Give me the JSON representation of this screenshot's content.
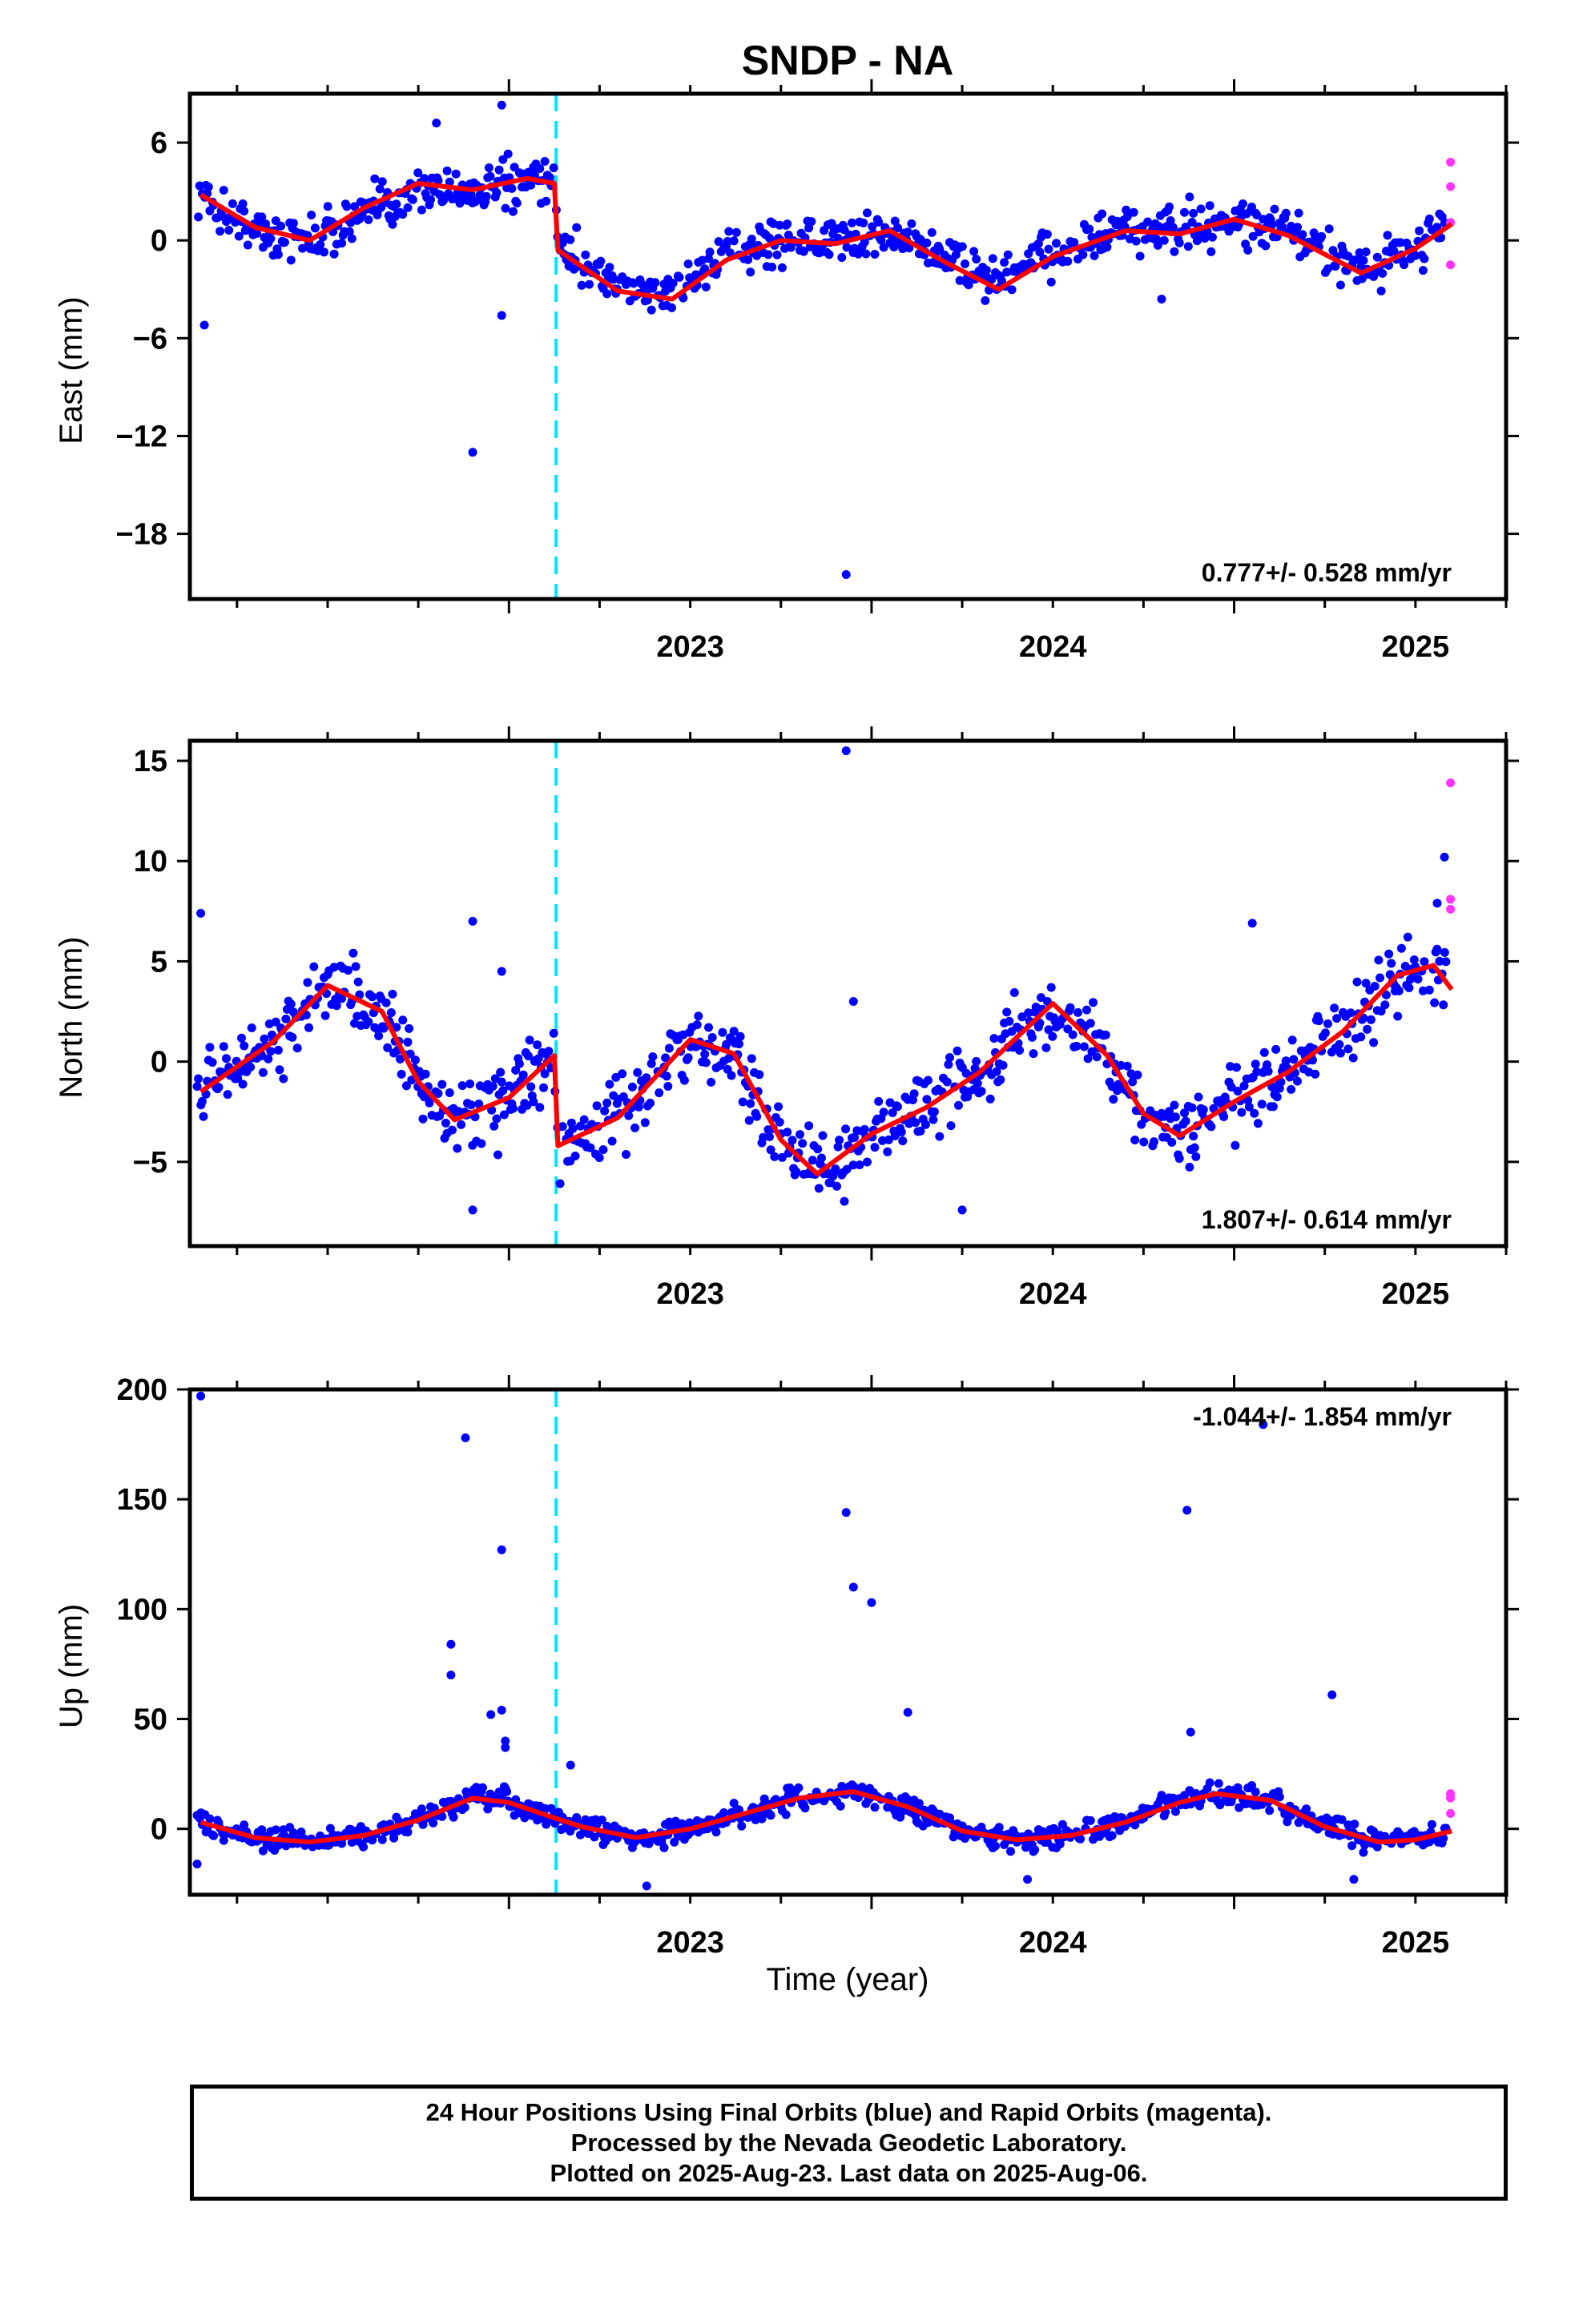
{
  "chart_data": {
    "title": "SNDP - NA",
    "x_axis": {
      "label": "Time (year)",
      "ticks": [
        2023,
        2024,
        2025
      ],
      "range": [
        2022.12,
        2025.75
      ]
    },
    "legend_colors": {
      "final": "#0000ff",
      "rapid": "#ff33ff",
      "model": "#ff0000",
      "offset": "#00e5ff"
    },
    "offset_epoch": 2023.13,
    "panels": [
      {
        "type": "scatter",
        "ylabel": "East (mm)",
        "yticks": [
          6,
          0,
          -6,
          -12,
          -18
        ],
        "ylim": [
          -22,
          9
        ],
        "rate_text": "0.777+/- 0.528 mm/yr",
        "rate_position": "bottom-right",
        "model": [
          [
            2022.15,
            2.8
          ],
          [
            2022.3,
            0.8
          ],
          [
            2022.45,
            0.0
          ],
          [
            2022.6,
            2.0
          ],
          [
            2022.75,
            3.5
          ],
          [
            2022.9,
            3.1
          ],
          [
            2023.05,
            3.8
          ],
          [
            2023.125,
            3.5
          ],
          [
            2023.135,
            -0.6
          ],
          [
            2023.3,
            -3.1
          ],
          [
            2023.45,
            -3.6
          ],
          [
            2023.6,
            -1.2
          ],
          [
            2023.75,
            0.0
          ],
          [
            2023.9,
            -0.2
          ],
          [
            2024.05,
            0.6
          ],
          [
            2024.2,
            -1.3
          ],
          [
            2024.35,
            -3.0
          ],
          [
            2024.5,
            -1.0
          ],
          [
            2024.7,
            0.6
          ],
          [
            2024.85,
            0.4
          ],
          [
            2025.0,
            1.3
          ],
          [
            2025.15,
            0.3
          ],
          [
            2025.35,
            -2.0
          ],
          [
            2025.5,
            -0.5
          ],
          [
            2025.6,
            1.0
          ]
        ],
        "trend": [
          [
            2022.15,
            2.6
          ],
          [
            2022.3,
            0.6
          ],
          [
            2022.45,
            0.0
          ],
          [
            2022.6,
            1.6
          ],
          [
            2022.75,
            3.2
          ],
          [
            2022.9,
            3.0
          ],
          [
            2023.05,
            3.6
          ],
          [
            2023.125,
            3.4
          ],
          [
            2023.14,
            -0.4
          ],
          [
            2023.3,
            -2.8
          ],
          [
            2023.45,
            -3.2
          ],
          [
            2023.6,
            -1.0
          ],
          [
            2023.75,
            0.2
          ],
          [
            2023.9,
            0.0
          ],
          [
            2024.05,
            0.4
          ],
          [
            2024.2,
            -1.0
          ],
          [
            2024.35,
            -2.6
          ],
          [
            2024.5,
            -0.8
          ],
          [
            2024.7,
            0.6
          ],
          [
            2024.85,
            0.6
          ],
          [
            2025.0,
            1.2
          ],
          [
            2025.15,
            0.4
          ],
          [
            2025.35,
            -1.6
          ],
          [
            2025.5,
            -0.4
          ],
          [
            2025.6,
            0.9
          ]
        ],
        "amp": 1.3,
        "outliers": [
          [
            2022.16,
            -5.2
          ],
          [
            2022.9,
            -13
          ],
          [
            2022.98,
            -4.6
          ],
          [
            2023.93,
            -20.5
          ],
          [
            2022.8,
            7.2
          ],
          [
            2022.98,
            8.3
          ],
          [
            2024.8,
            -3.6
          ]
        ],
        "rapid": [
          [
            2025.59,
            4.8
          ],
          [
            2025.59,
            3.3
          ],
          [
            2025.59,
            1.1
          ],
          [
            2025.59,
            -1.5
          ]
        ]
      },
      {
        "type": "scatter",
        "ylabel": "North (mm)",
        "yticks": [
          15,
          10,
          5,
          0,
          -5
        ],
        "ylim": [
          -9.2,
          16
        ],
        "rate_text": "1.807+/- 0.614 mm/yr",
        "rate_position": "bottom-right",
        "model": [
          [
            2022.15,
            -1.5
          ],
          [
            2022.35,
            1.0
          ],
          [
            2022.5,
            3.8
          ],
          [
            2022.65,
            2.5
          ],
          [
            2022.75,
            -1.0
          ],
          [
            2022.85,
            -2.9
          ],
          [
            2023.0,
            -1.8
          ],
          [
            2023.125,
            0.3
          ],
          [
            2023.135,
            -4.2
          ],
          [
            2023.3,
            -2.8
          ],
          [
            2023.5,
            1.1
          ],
          [
            2023.62,
            0.4
          ],
          [
            2023.75,
            -3.9
          ],
          [
            2023.85,
            -5.6
          ],
          [
            2024.0,
            -3.6
          ],
          [
            2024.15,
            -2.3
          ],
          [
            2024.3,
            -0.5
          ],
          [
            2024.5,
            2.9
          ],
          [
            2024.65,
            0.3
          ],
          [
            2024.75,
            -2.6
          ],
          [
            2024.85,
            -3.7
          ],
          [
            2025.0,
            -2.0
          ],
          [
            2025.15,
            -0.5
          ],
          [
            2025.3,
            1.5
          ],
          [
            2025.45,
            4.3
          ],
          [
            2025.55,
            4.8
          ],
          [
            2025.6,
            3.6
          ]
        ],
        "amp": 1.6,
        "outliers": [
          [
            2022.15,
            7.4
          ],
          [
            2022.9,
            7.0
          ],
          [
            2022.98,
            4.5
          ],
          [
            2023.93,
            15.5
          ],
          [
            2023.95,
            3.0
          ],
          [
            2024.25,
            -7.4
          ],
          [
            2025.05,
            6.9
          ],
          [
            2022.9,
            -7.4
          ],
          [
            2025.58,
            10.2
          ],
          [
            2025.56,
            7.9
          ]
        ],
        "rapid": [
          [
            2025.59,
            13.9
          ],
          [
            2025.59,
            8.1
          ],
          [
            2025.59,
            7.6
          ]
        ]
      },
      {
        "type": "scatter",
        "ylabel": "Up (mm)",
        "yticks": [
          200,
          150,
          100,
          50,
          0
        ],
        "ylim": [
          -30,
          200
        ],
        "rate_text": "-1.044+/- 1.854 mm/yr",
        "rate_position": "top-right",
        "model": [
          [
            2022.15,
            3
          ],
          [
            2022.3,
            -4
          ],
          [
            2022.45,
            -6
          ],
          [
            2022.6,
            -3
          ],
          [
            2022.75,
            4
          ],
          [
            2022.9,
            14
          ],
          [
            2023.0,
            12
          ],
          [
            2023.125,
            5
          ],
          [
            2023.2,
            1
          ],
          [
            2023.35,
            -4
          ],
          [
            2023.5,
            0
          ],
          [
            2023.65,
            7
          ],
          [
            2023.8,
            14
          ],
          [
            2023.95,
            17
          ],
          [
            2024.1,
            10
          ],
          [
            2024.25,
            -1
          ],
          [
            2024.4,
            -5
          ],
          [
            2024.55,
            -3
          ],
          [
            2024.7,
            3
          ],
          [
            2024.85,
            12
          ],
          [
            2024.95,
            16
          ],
          [
            2025.1,
            13
          ],
          [
            2025.25,
            1
          ],
          [
            2025.4,
            -6
          ],
          [
            2025.5,
            -5
          ],
          [
            2025.6,
            -1
          ]
        ],
        "amp": 4.5,
        "outliers": [
          [
            2022.15,
            197
          ],
          [
            2022.88,
            178
          ],
          [
            2022.98,
            127
          ],
          [
            2022.84,
            84
          ],
          [
            2022.84,
            70
          ],
          [
            2022.95,
            52
          ],
          [
            2022.98,
            54
          ],
          [
            2022.99,
            40
          ],
          [
            2022.99,
            37
          ],
          [
            2023.93,
            144
          ],
          [
            2023.95,
            110
          ],
          [
            2024.0,
            103
          ],
          [
            2024.1,
            53
          ],
          [
            2024.87,
            145
          ],
          [
            2024.88,
            44
          ],
          [
            2025.08,
            184
          ],
          [
            2025.27,
            61
          ],
          [
            2023.17,
            29
          ],
          [
            2023.38,
            -26
          ],
          [
            2025.33,
            -23
          ],
          [
            2024.43,
            -23
          ],
          [
            2022.14,
            -16
          ]
        ],
        "rapid": [
          [
            2025.59,
            16
          ],
          [
            2025.59,
            14
          ],
          [
            2025.59,
            7
          ]
        ]
      }
    ]
  },
  "footer": {
    "line1": "24 Hour Positions Using Final Orbits (blue) and Rapid Orbits (magenta).",
    "line2": "Processed by the Nevada Geodetic Laboratory.",
    "line3": "Plotted on 2025-Aug-23. Last data on 2025-Aug-06."
  }
}
